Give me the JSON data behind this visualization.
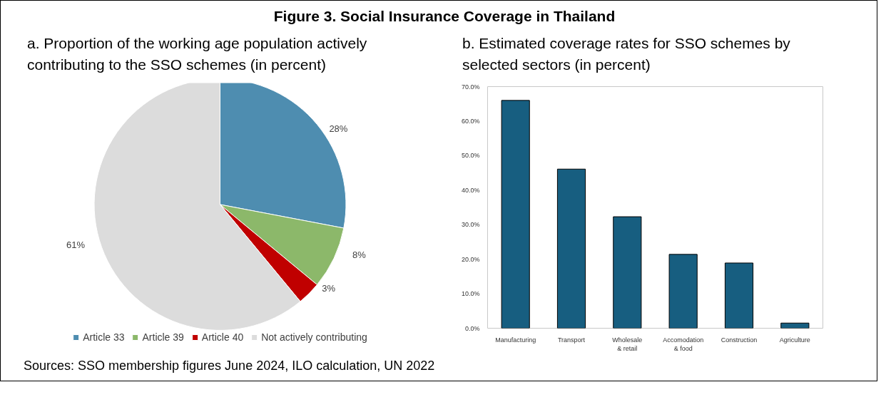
{
  "chart_data": [
    {
      "type": "pie",
      "title": "Figure 3. Social Insurance Coverage in Thailand",
      "subtitle": "a. Proportion of the working age population actively contributing to the SSO schemes (in percent)",
      "categories": [
        "Article 33",
        "Article 39",
        "Article 40",
        "Not actively contributing"
      ],
      "values": [
        28,
        8,
        3,
        61
      ],
      "colors": [
        "#4e8db0",
        "#8cb86a",
        "#c00000",
        "#dcdcdc"
      ],
      "value_labels": [
        "28%",
        "8%",
        "3%",
        "61%"
      ],
      "legend": "bottom",
      "annotations": [
        "Sources: SSO membership figures June 2024, ILO calculation, UN 2022"
      ]
    },
    {
      "type": "bar",
      "title": "b. Estimated coverage rates for SSO schemes by selected sectors (in percent)",
      "categories": [
        "Manufacturing",
        "Transport",
        "Wholesale\n& retail",
        "Accomodation\n& food",
        "Construction",
        "Agriculture"
      ],
      "values": [
        66.0,
        46.1,
        32.3,
        21.4,
        18.9,
        1.5
      ],
      "color": "#175e80",
      "ylim": [
        0,
        70
      ],
      "yticks": [
        {
          "value": 0,
          "label": "0.0%"
        },
        {
          "value": 10,
          "label": "10.0%"
        },
        {
          "value": 20,
          "label": "20.0%"
        },
        {
          "value": 30,
          "label": "30.0%"
        },
        {
          "value": 40,
          "label": "40.0%"
        },
        {
          "value": 50,
          "label": "50.0%"
        },
        {
          "value": 60,
          "label": "60.0%"
        },
        {
          "value": 70,
          "label": "70.0%"
        }
      ],
      "grid": false
    }
  ]
}
